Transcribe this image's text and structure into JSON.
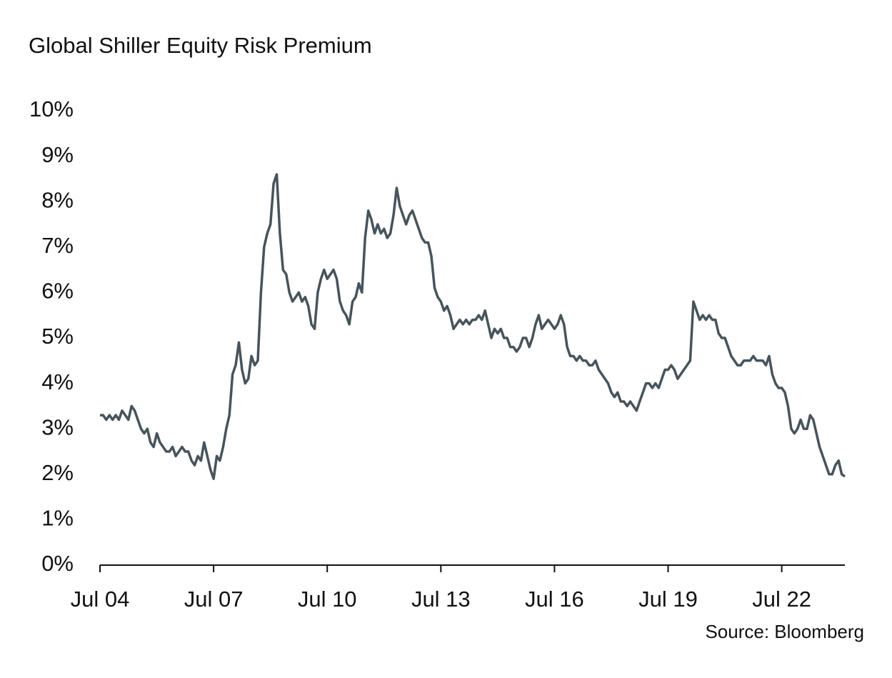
{
  "chart_data": {
    "type": "line",
    "title": "Global Shiller Equity Risk Premium",
    "source": "Source: Bloomberg",
    "x": [
      "2004-07",
      "2004-08",
      "2004-09",
      "2004-10",
      "2004-11",
      "2004-12",
      "2005-01",
      "2005-02",
      "2005-03",
      "2005-04",
      "2005-05",
      "2005-06",
      "2005-07",
      "2005-08",
      "2005-09",
      "2005-10",
      "2005-11",
      "2005-12",
      "2006-01",
      "2006-02",
      "2006-03",
      "2006-04",
      "2006-05",
      "2006-06",
      "2006-07",
      "2006-08",
      "2006-09",
      "2006-10",
      "2006-11",
      "2006-12",
      "2007-01",
      "2007-02",
      "2007-03",
      "2007-04",
      "2007-05",
      "2007-06",
      "2007-07",
      "2007-08",
      "2007-09",
      "2007-10",
      "2007-11",
      "2007-12",
      "2008-01",
      "2008-02",
      "2008-03",
      "2008-04",
      "2008-05",
      "2008-06",
      "2008-07",
      "2008-08",
      "2008-09",
      "2008-10",
      "2008-11",
      "2008-12",
      "2009-01",
      "2009-02",
      "2009-03",
      "2009-04",
      "2009-05",
      "2009-06",
      "2009-07",
      "2009-08",
      "2009-09",
      "2009-10",
      "2009-11",
      "2009-12",
      "2010-01",
      "2010-02",
      "2010-03",
      "2010-04",
      "2010-05",
      "2010-06",
      "2010-07",
      "2010-08",
      "2010-09",
      "2010-10",
      "2010-11",
      "2010-12",
      "2011-01",
      "2011-02",
      "2011-03",
      "2011-04",
      "2011-05",
      "2011-06",
      "2011-07",
      "2011-08",
      "2011-09",
      "2011-10",
      "2011-11",
      "2011-12",
      "2012-01",
      "2012-02",
      "2012-03",
      "2012-04",
      "2012-05",
      "2012-06",
      "2012-07",
      "2012-08",
      "2012-09",
      "2012-10",
      "2012-11",
      "2012-12",
      "2013-01",
      "2013-02",
      "2013-03",
      "2013-04",
      "2013-05",
      "2013-06",
      "2013-07",
      "2013-08",
      "2013-09",
      "2013-10",
      "2013-11",
      "2013-12",
      "2014-01",
      "2014-02",
      "2014-03",
      "2014-04",
      "2014-05",
      "2014-06",
      "2014-07",
      "2014-08",
      "2014-09",
      "2014-10",
      "2014-11",
      "2014-12",
      "2015-01",
      "2015-02",
      "2015-03",
      "2015-04",
      "2015-05",
      "2015-06",
      "2015-07",
      "2015-08",
      "2015-09",
      "2015-10",
      "2015-11",
      "2015-12",
      "2016-01",
      "2016-02",
      "2016-03",
      "2016-04",
      "2016-05",
      "2016-06",
      "2016-07",
      "2016-08",
      "2016-09",
      "2016-10",
      "2016-11",
      "2016-12",
      "2017-01",
      "2017-02",
      "2017-03",
      "2017-04",
      "2017-05",
      "2017-06",
      "2017-07",
      "2017-08",
      "2017-09",
      "2017-10",
      "2017-11",
      "2017-12",
      "2018-01",
      "2018-02",
      "2018-03",
      "2018-04",
      "2018-05",
      "2018-06",
      "2018-07",
      "2018-08",
      "2018-09",
      "2018-10",
      "2018-11",
      "2018-12",
      "2019-01",
      "2019-02",
      "2019-03",
      "2019-04",
      "2019-05",
      "2019-06",
      "2019-07",
      "2019-08",
      "2019-09",
      "2019-10",
      "2019-11",
      "2019-12",
      "2020-01",
      "2020-02",
      "2020-03",
      "2020-04",
      "2020-05",
      "2020-06",
      "2020-07",
      "2020-08",
      "2020-09",
      "2020-10",
      "2020-11",
      "2020-12",
      "2021-01",
      "2021-02",
      "2021-03",
      "2021-04",
      "2021-05",
      "2021-06",
      "2021-07",
      "2021-08",
      "2021-09",
      "2021-10",
      "2021-11",
      "2021-12",
      "2022-01",
      "2022-02",
      "2022-03",
      "2022-04",
      "2022-05",
      "2022-06",
      "2022-07",
      "2022-08",
      "2022-09",
      "2022-10",
      "2022-11",
      "2022-12",
      "2023-01",
      "2023-02",
      "2023-03",
      "2023-04",
      "2023-05",
      "2023-06",
      "2023-07",
      "2023-08",
      "2023-09",
      "2023-10",
      "2023-11",
      "2023-12",
      "2024-01",
      "2024-02",
      "2024-03"
    ],
    "values": [
      3.3,
      3.3,
      3.2,
      3.3,
      3.2,
      3.3,
      3.2,
      3.4,
      3.3,
      3.2,
      3.5,
      3.4,
      3.2,
      3.0,
      2.9,
      3.0,
      2.7,
      2.6,
      2.9,
      2.7,
      2.6,
      2.5,
      2.5,
      2.6,
      2.4,
      2.5,
      2.6,
      2.5,
      2.5,
      2.3,
      2.2,
      2.4,
      2.3,
      2.7,
      2.4,
      2.1,
      1.9,
      2.4,
      2.3,
      2.6,
      3.0,
      3.3,
      4.2,
      4.4,
      4.9,
      4.3,
      4.0,
      4.1,
      4.6,
      4.4,
      4.5,
      6.0,
      7.0,
      7.3,
      7.5,
      8.4,
      8.6,
      7.3,
      6.5,
      6.4,
      6.0,
      5.8,
      5.9,
      6.0,
      5.8,
      5.9,
      5.7,
      5.3,
      5.2,
      6.0,
      6.3,
      6.5,
      6.3,
      6.4,
      6.5,
      6.3,
      5.8,
      5.6,
      5.5,
      5.3,
      5.8,
      5.9,
      6.2,
      6.0,
      7.2,
      7.8,
      7.6,
      7.3,
      7.5,
      7.3,
      7.4,
      7.2,
      7.3,
      7.7,
      8.3,
      7.9,
      7.7,
      7.5,
      7.7,
      7.8,
      7.6,
      7.4,
      7.2,
      7.1,
      7.1,
      6.8,
      6.1,
      5.9,
      5.8,
      5.6,
      5.7,
      5.5,
      5.2,
      5.3,
      5.4,
      5.3,
      5.4,
      5.3,
      5.4,
      5.4,
      5.5,
      5.4,
      5.6,
      5.3,
      5.0,
      5.2,
      5.1,
      5.2,
      5.0,
      5.0,
      4.8,
      4.8,
      4.7,
      4.8,
      5.0,
      5.0,
      4.8,
      5.0,
      5.3,
      5.5,
      5.2,
      5.3,
      5.4,
      5.3,
      5.2,
      5.3,
      5.5,
      5.3,
      4.8,
      4.6,
      4.6,
      4.5,
      4.6,
      4.5,
      4.5,
      4.4,
      4.4,
      4.5,
      4.3,
      4.2,
      4.1,
      4.0,
      3.8,
      3.7,
      3.8,
      3.6,
      3.6,
      3.5,
      3.6,
      3.5,
      3.4,
      3.6,
      3.8,
      4.0,
      4.0,
      3.9,
      4.0,
      3.9,
      4.1,
      4.3,
      4.3,
      4.4,
      4.3,
      4.1,
      4.2,
      4.3,
      4.4,
      4.5,
      5.8,
      5.6,
      5.4,
      5.5,
      5.4,
      5.5,
      5.4,
      5.4,
      5.1,
      5.0,
      5.0,
      4.8,
      4.6,
      4.5,
      4.4,
      4.4,
      4.5,
      4.5,
      4.5,
      4.6,
      4.5,
      4.5,
      4.5,
      4.4,
      4.6,
      4.2,
      4.0,
      3.9,
      3.9,
      3.8,
      3.5,
      3.0,
      2.9,
      3.0,
      3.2,
      3.0,
      3.0,
      3.3,
      3.2,
      2.9,
      2.6,
      2.4,
      2.2,
      2.0,
      2.0,
      2.2,
      2.3,
      2.0,
      1.95
    ],
    "color": "#46545c",
    "xlim": [
      "2004-07",
      "2024-03"
    ],
    "xticks": [
      {
        "value": "2004-07",
        "label": "Jul 04"
      },
      {
        "value": "2007-07",
        "label": "Jul 07"
      },
      {
        "value": "2010-07",
        "label": "Jul 10"
      },
      {
        "value": "2013-07",
        "label": "Jul 13"
      },
      {
        "value": "2016-07",
        "label": "Jul 16"
      },
      {
        "value": "2019-07",
        "label": "Jul 19"
      },
      {
        "value": "2022-07",
        "label": "Jul 22"
      }
    ],
    "ylim": [
      0,
      10
    ],
    "yticks": [
      {
        "value": 0,
        "label": "0%"
      },
      {
        "value": 1,
        "label": "1%"
      },
      {
        "value": 2,
        "label": "2%"
      },
      {
        "value": 3,
        "label": "3%"
      },
      {
        "value": 4,
        "label": "4%"
      },
      {
        "value": 5,
        "label": "5%"
      },
      {
        "value": 6,
        "label": "6%"
      },
      {
        "value": 7,
        "label": "7%"
      },
      {
        "value": 8,
        "label": "8%"
      },
      {
        "value": 9,
        "label": "9%"
      },
      {
        "value": 10,
        "label": "10%"
      }
    ],
    "grid": false
  }
}
